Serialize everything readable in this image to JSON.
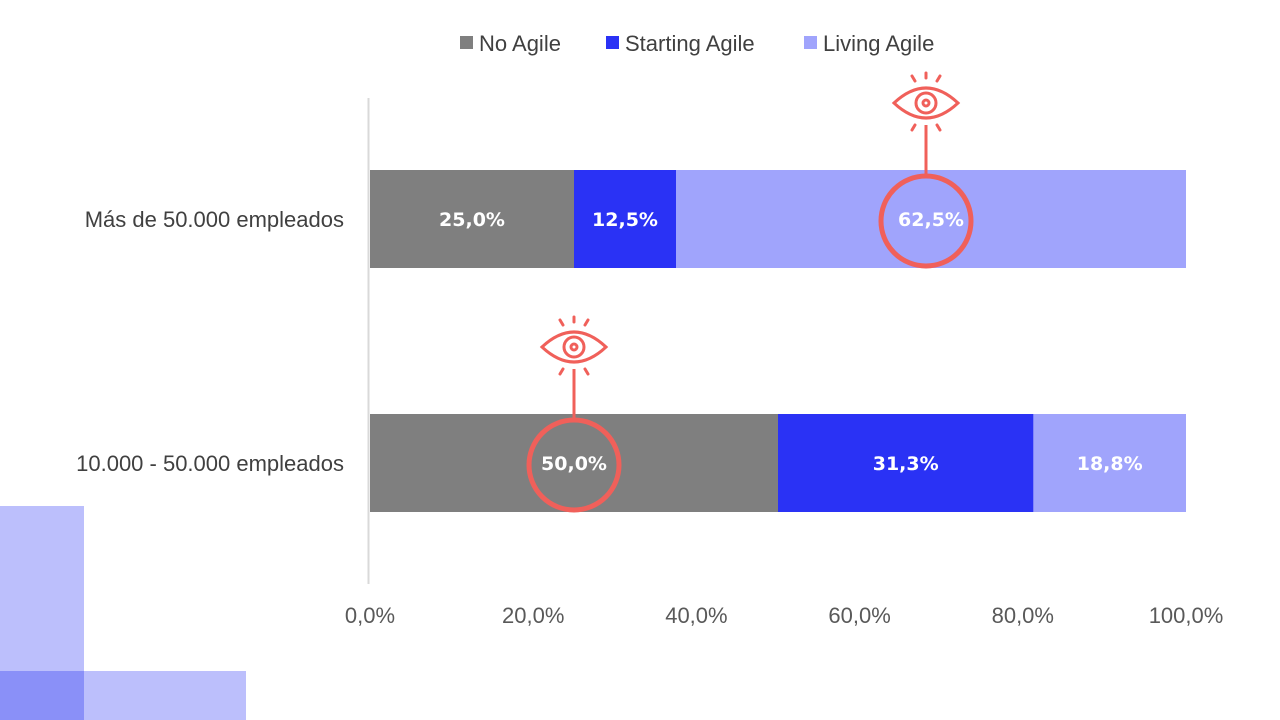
{
  "chart_data": {
    "type": "bar",
    "orientation": "horizontal",
    "stacked": true,
    "categories": [
      "Más de 50.000 empleados",
      "10.000 - 50.000 empleados"
    ],
    "series": [
      {
        "name": "No Agile",
        "color": "#7f7f7f",
        "values": [
          25.0,
          50.0
        ],
        "labels": [
          "25,0%",
          "50,0%"
        ]
      },
      {
        "name": "Starting Agile",
        "color": "#2a32f5",
        "values": [
          12.5,
          31.3
        ],
        "labels": [
          "12,5%",
          "31,3%"
        ]
      },
      {
        "name": "Living Agile",
        "color": "#a0a4fc",
        "values": [
          62.5,
          18.8
        ],
        "labels": [
          "62,5%",
          "18,8%"
        ]
      }
    ],
    "xlim": [
      0,
      100
    ],
    "xticks": [
      "0,0%",
      "20,0%",
      "40,0%",
      "60,0%",
      "80,0%",
      "100,0%"
    ],
    "legend": "top",
    "grid": false,
    "annotations": [
      {
        "type": "eye-icon-circle",
        "category": 0,
        "series": 2,
        "color": "#f0605a"
      },
      {
        "type": "eye-icon-circle",
        "category": 1,
        "series": 0,
        "color": "#f0605a"
      }
    ]
  },
  "decoration": {
    "square_color": "#bcbffc",
    "overlap_color": "#8a90f8"
  }
}
